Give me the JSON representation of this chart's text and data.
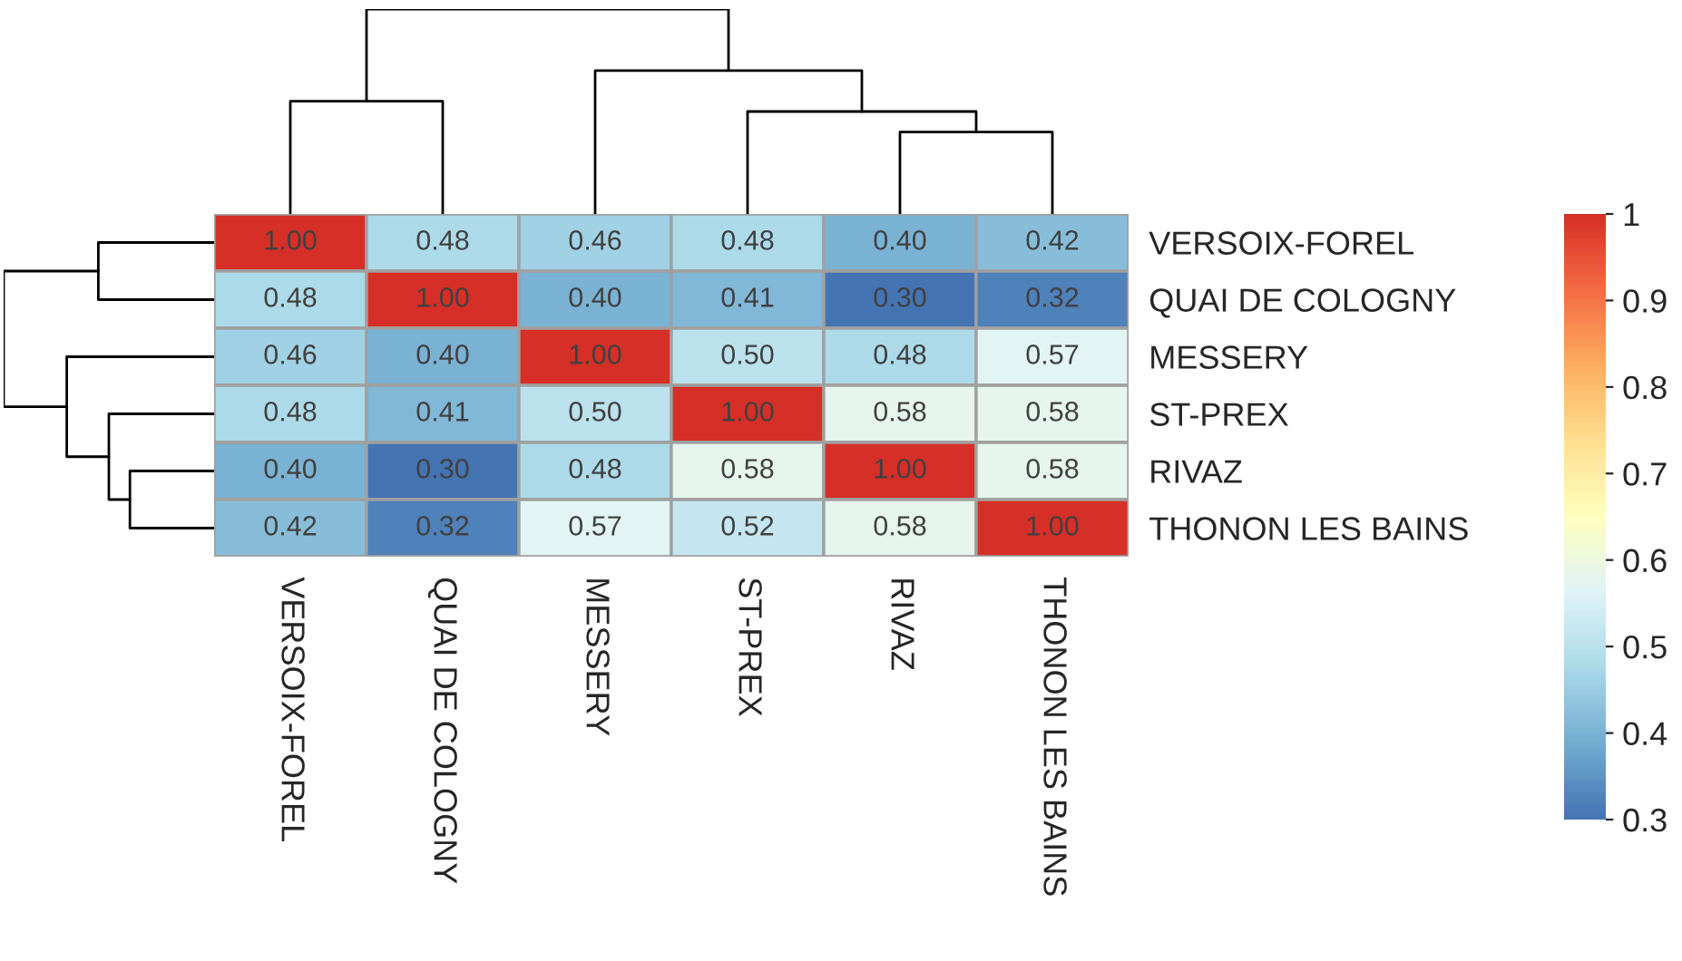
{
  "chart_data": {
    "type": "heatmap",
    "categories": [
      "VERSOIX-FOREL",
      "QUAI DE COLOGNY",
      "MESSERY",
      "ST-PREX",
      "RIVAZ",
      "THONON LES BAINS"
    ],
    "y_categories": [
      "VERSOIX-FOREL",
      "QUAI DE COLOGNY",
      "MESSERY",
      "ST-PREX",
      "RIVAZ",
      "THONON LES BAINS"
    ],
    "cells": [
      [
        1.0,
        0.48,
        0.46,
        0.48,
        0.4,
        0.42
      ],
      [
        0.48,
        1.0,
        0.4,
        0.41,
        0.3,
        0.32
      ],
      [
        0.46,
        0.4,
        1.0,
        0.5,
        0.48,
        0.57
      ],
      [
        0.48,
        0.41,
        0.5,
        1.0,
        0.58,
        0.58
      ],
      [
        0.4,
        0.3,
        0.48,
        0.58,
        1.0,
        0.58
      ],
      [
        0.42,
        0.32,
        0.57,
        0.52,
        0.58,
        1.0
      ]
    ],
    "cell_labels": [
      [
        "1.00",
        "0.48",
        "0.46",
        "0.48",
        "0.40",
        "0.42"
      ],
      [
        "0.48",
        "1.00",
        "0.40",
        "0.41",
        "0.30",
        "0.32"
      ],
      [
        "0.46",
        "0.40",
        "1.00",
        "0.50",
        "0.48",
        "0.57"
      ],
      [
        "0.48",
        "0.41",
        "0.50",
        "1.00",
        "0.58",
        "0.58"
      ],
      [
        "0.40",
        "0.30",
        "0.48",
        "0.58",
        "1.00",
        "0.58"
      ],
      [
        "0.42",
        "0.32",
        "0.57",
        "0.52",
        "0.58",
        "1.00"
      ]
    ],
    "clim": [
      0.3,
      1
    ],
    "cticks": [
      0.3,
      0.4,
      0.5,
      0.6,
      0.7,
      0.8,
      0.9,
      {
        "value": 1,
        "label": "1"
      }
    ]
  }
}
